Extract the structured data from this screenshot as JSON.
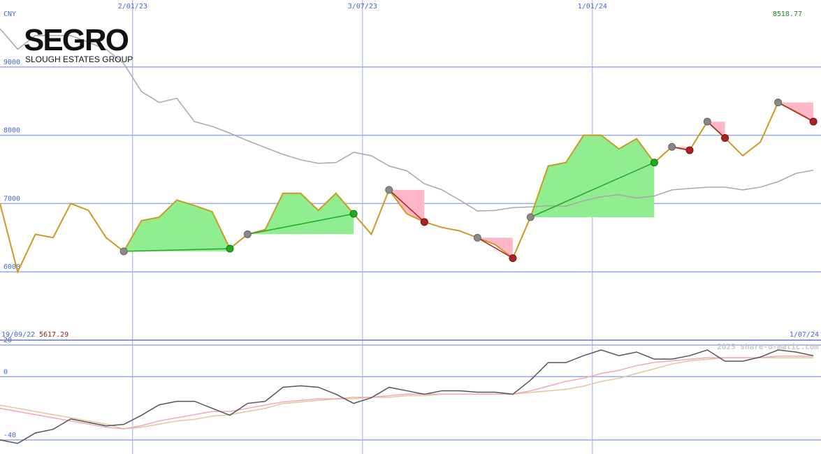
{
  "logo": {
    "name": "SEGRO",
    "tagline": "SLOUGH ESTATES GROUP"
  },
  "chart_data": [
    {
      "type": "line",
      "unit_label": "CNY",
      "max_label": 8518.77,
      "min_label": 5617.29,
      "date_range": [
        "19/09/22",
        "1/07/24"
      ],
      "xlim": [
        "2022-09-19",
        "2024-06-30"
      ],
      "xticks": [
        {
          "value": "2023-01-02",
          "label": "2/01/23"
        },
        {
          "value": "2023-07-03",
          "label": "3/07/23"
        },
        {
          "value": "2024-01-01",
          "label": "1/01/24"
        }
      ],
      "ylim": [
        5000,
        9980
      ],
      "yticks": [
        6000,
        7000,
        8000,
        9000
      ],
      "grid": true,
      "x": [
        "2022-09-19",
        "2022-10-03",
        "2022-10-17",
        "2022-10-31",
        "2022-11-14",
        "2022-11-28",
        "2022-12-12",
        "2022-12-26",
        "2023-01-09",
        "2023-01-23",
        "2023-02-06",
        "2023-02-20",
        "2023-03-06",
        "2023-03-20",
        "2023-04-03",
        "2023-04-17",
        "2023-05-01",
        "2023-05-15",
        "2023-05-29",
        "2023-06-12",
        "2023-06-26",
        "2023-07-10",
        "2023-07-24",
        "2023-08-07",
        "2023-08-21",
        "2023-09-04",
        "2023-09-18",
        "2023-10-02",
        "2023-10-16",
        "2023-10-30",
        "2023-11-13",
        "2023-11-27",
        "2023-12-11",
        "2023-12-25",
        "2024-01-08",
        "2024-01-22",
        "2024-02-05",
        "2024-02-19",
        "2024-03-04",
        "2024-03-18",
        "2024-04-01",
        "2024-04-15",
        "2024-04-29",
        "2024-05-13",
        "2024-05-27",
        "2024-06-10",
        "2024-06-24"
      ],
      "series": [
        {
          "color": "#cc9a1e",
          "values": [
            7000,
            6000,
            6550,
            6500,
            7000,
            6900,
            6500,
            6300,
            6750,
            6800,
            7050,
            6970,
            6880,
            6340,
            6550,
            6620,
            7150,
            7150,
            6900,
            7150,
            6850,
            6550,
            7200,
            6850,
            6730,
            6650,
            6600,
            6500,
            6400,
            6200,
            6800,
            7550,
            7600,
            8000,
            8000,
            7800,
            7950,
            7600,
            7830,
            7780,
            8200,
            7960,
            7700,
            7900,
            8480,
            8350,
            8200
          ]
        },
        {
          "color": "#a8a8a8",
          "values": [
            9560,
            9260,
            9460,
            9460,
            9460,
            9360,
            9260,
            9050,
            8640,
            8480,
            8540,
            8200,
            8130,
            8030,
            7920,
            7820,
            7720,
            7640,
            7590,
            7600,
            7750,
            7700,
            7550,
            7480,
            7290,
            7200,
            7050,
            6890,
            6900,
            6940,
            6950,
            6970,
            6960,
            7040,
            7100,
            7130,
            7080,
            7110,
            7200,
            7220,
            7240,
            7240,
            7200,
            7240,
            7320,
            7440,
            7490
          ]
        }
      ],
      "gain_color": "#90ee90",
      "loss_color": "#ffb6c8",
      "trades": [
        {
          "entry": "2022-12-26",
          "exit": "2023-03-20"
        },
        {
          "entry": "2023-04-03",
          "exit": "2023-06-26"
        },
        {
          "entry": "2023-07-24",
          "exit": "2023-08-21"
        },
        {
          "entry": "2023-10-02",
          "exit": "2023-10-30"
        },
        {
          "entry": "2023-11-13",
          "exit": "2024-02-19"
        },
        {
          "entry": "2024-03-04",
          "exit": "2024-03-18"
        },
        {
          "entry": "2024-04-01",
          "exit": "2024-04-15"
        },
        {
          "entry": "2024-05-27",
          "exit": "2024-06-24"
        }
      ]
    },
    {
      "type": "line",
      "watermark": "2025 share-o-matic.com",
      "ylim": [
        -48.9,
        23.1
      ],
      "yticks": [
        -40,
        0,
        20
      ],
      "grid": true,
      "series": [
        {
          "color": "#555555",
          "values": [
            -40,
            -42.2,
            -35.6,
            -33.3,
            -26.7,
            -28.9,
            -31.1,
            -30.2,
            -24.4,
            -17.8,
            -15.6,
            -15.6,
            -20,
            -24.4,
            -16.9,
            -15.6,
            -6.7,
            -5.8,
            -6.7,
            -11.1,
            -16.9,
            -13.3,
            -6.7,
            -8.9,
            -11.1,
            -8.9,
            -8.9,
            -9.8,
            -9.8,
            -11.1,
            -2.2,
            8.9,
            8.9,
            13.3,
            16.9,
            13.3,
            15.6,
            11.1,
            11.1,
            13.3,
            16.9,
            9.8,
            9.8,
            12.4,
            16.9,
            15.6,
            13.3
          ]
        },
        {
          "color": "#f4a6b8",
          "values": [
            -20,
            -22,
            -24,
            -26,
            -28,
            -30,
            -32,
            -33,
            -31,
            -28,
            -26,
            -24,
            -22,
            -22,
            -20,
            -18,
            -16,
            -15,
            -14,
            -14,
            -13,
            -13,
            -12,
            -11,
            -11,
            -11,
            -11,
            -11,
            -11,
            -11,
            -9,
            -6,
            -3,
            -1,
            2,
            4,
            7,
            9,
            10,
            11,
            12,
            12,
            12,
            12,
            13,
            13,
            13
          ]
        },
        {
          "color": "#e0c89a",
          "values": [
            -18,
            -20,
            -22,
            -24,
            -26,
            -28,
            -30,
            -33,
            -32,
            -30,
            -28,
            -27,
            -25,
            -24,
            -22,
            -20,
            -17,
            -16,
            -15,
            -14,
            -14,
            -13,
            -13,
            -12,
            -12,
            -11,
            -11,
            -11,
            -11,
            -11,
            -10,
            -9,
            -8,
            -6,
            -3,
            -1,
            2,
            5,
            8,
            10,
            11,
            12,
            12,
            12,
            12,
            12,
            12
          ]
        }
      ]
    }
  ]
}
